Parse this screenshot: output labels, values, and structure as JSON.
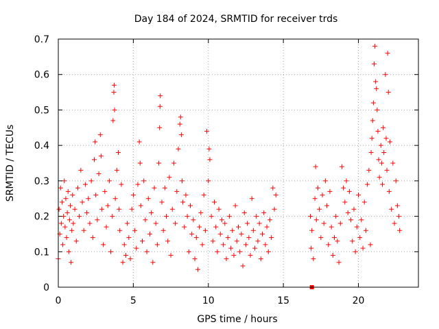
{
  "chart_data": {
    "type": "scatter",
    "title": "Day 184 of 2024, SRMTID for receiver trds",
    "xlabel": "GPS time / hours",
    "ylabel": "SRMTID / TECUs",
    "xlim": [
      0,
      24
    ],
    "ylim": [
      0,
      0.7
    ],
    "xticks": [
      0,
      5,
      10,
      15,
      20
    ],
    "xtick_labels": [
      "0",
      "5",
      "10",
      "15",
      "20"
    ],
    "yticks": [
      0,
      0.1,
      0.2,
      0.3,
      0.4,
      0.5,
      0.6,
      0.7
    ],
    "ytick_labels": [
      "0",
      "0.1",
      "0.2",
      "0.3",
      "0.4",
      "0.5",
      "0.6",
      "0.7"
    ],
    "grid": true,
    "marker": "+",
    "color": "#ff0000",
    "square_marker": {
      "x": 16.9,
      "y": 0.0
    },
    "series": [
      {
        "name": "SRMTID",
        "points": [
          [
            0.0,
            0.08
          ],
          [
            0.05,
            0.22
          ],
          [
            0.1,
            0.15
          ],
          [
            0.15,
            0.28
          ],
          [
            0.2,
            0.18
          ],
          [
            0.25,
            0.24
          ],
          [
            0.3,
            0.12
          ],
          [
            0.35,
            0.2
          ],
          [
            0.4,
            0.3
          ],
          [
            0.45,
            0.17
          ],
          [
            0.5,
            0.25
          ],
          [
            0.55,
            0.14
          ],
          [
            0.6,
            0.21
          ],
          [
            0.65,
            0.27
          ],
          [
            0.7,
            0.1
          ],
          [
            0.75,
            0.19
          ],
          [
            0.8,
            0.23
          ],
          [
            0.85,
            0.07
          ],
          [
            0.9,
            0.16
          ],
          [
            0.95,
            0.26
          ],
          [
            1.0,
            0.18
          ],
          [
            1.1,
            0.22
          ],
          [
            1.2,
            0.13
          ],
          [
            1.3,
            0.28
          ],
          [
            1.4,
            0.2
          ],
          [
            1.5,
            0.33
          ],
          [
            1.6,
            0.24
          ],
          [
            1.7,
            0.16
          ],
          [
            1.8,
            0.29
          ],
          [
            1.9,
            0.21
          ],
          [
            2.0,
            0.25
          ],
          [
            2.1,
            0.18
          ],
          [
            2.2,
            0.3
          ],
          [
            2.3,
            0.14
          ],
          [
            2.4,
            0.36
          ],
          [
            2.45,
            0.41
          ],
          [
            2.5,
            0.26
          ],
          [
            2.6,
            0.19
          ],
          [
            2.7,
            0.32
          ],
          [
            2.8,
            0.43
          ],
          [
            2.85,
            0.37
          ],
          [
            2.9,
            0.22
          ],
          [
            3.0,
            0.12
          ],
          [
            3.1,
            0.27
          ],
          [
            3.2,
            0.17
          ],
          [
            3.3,
            0.23
          ],
          [
            3.4,
            0.3
          ],
          [
            3.5,
            0.1
          ],
          [
            3.6,
            0.2
          ],
          [
            3.65,
            0.47
          ],
          [
            3.7,
            0.55
          ],
          [
            3.72,
            0.57
          ],
          [
            3.75,
            0.5
          ],
          [
            3.8,
            0.25
          ],
          [
            3.9,
            0.33
          ],
          [
            4.0,
            0.38
          ],
          [
            4.05,
            0.22
          ],
          [
            4.1,
            0.16
          ],
          [
            4.2,
            0.29
          ],
          [
            4.3,
            0.07
          ],
          [
            4.4,
            0.12
          ],
          [
            4.5,
            0.09
          ],
          [
            4.6,
            0.18
          ],
          [
            4.7,
            0.14
          ],
          [
            4.8,
            0.08
          ],
          [
            4.9,
            0.22
          ],
          [
            5.0,
            0.26
          ],
          [
            5.1,
            0.16
          ],
          [
            5.2,
            0.11
          ],
          [
            5.3,
            0.29
          ],
          [
            5.4,
            0.41
          ],
          [
            5.45,
            0.35
          ],
          [
            5.5,
            0.23
          ],
          [
            5.6,
            0.13
          ],
          [
            5.7,
            0.3
          ],
          [
            5.8,
            0.19
          ],
          [
            5.9,
            0.1
          ],
          [
            6.0,
            0.25
          ],
          [
            6.1,
            0.15
          ],
          [
            6.2,
            0.21
          ],
          [
            6.3,
            0.07
          ],
          [
            6.4,
            0.28
          ],
          [
            6.5,
            0.18
          ],
          [
            6.6,
            0.12
          ],
          [
            6.7,
            0.35
          ],
          [
            6.75,
            0.45
          ],
          [
            6.78,
            0.51
          ],
          [
            6.8,
            0.54
          ],
          [
            6.9,
            0.24
          ],
          [
            7.0,
            0.16
          ],
          [
            7.1,
            0.28
          ],
          [
            7.2,
            0.2
          ],
          [
            7.3,
            0.13
          ],
          [
            7.4,
            0.31
          ],
          [
            7.5,
            0.09
          ],
          [
            7.6,
            0.22
          ],
          [
            7.7,
            0.35
          ],
          [
            7.8,
            0.18
          ],
          [
            7.9,
            0.27
          ],
          [
            8.0,
            0.39
          ],
          [
            8.1,
            0.46
          ],
          [
            8.15,
            0.48
          ],
          [
            8.2,
            0.43
          ],
          [
            8.25,
            0.3
          ],
          [
            8.3,
            0.24
          ],
          [
            8.4,
            0.17
          ],
          [
            8.5,
            0.26
          ],
          [
            8.6,
            0.2
          ],
          [
            8.7,
            0.1
          ],
          [
            8.8,
            0.23
          ],
          [
            8.9,
            0.15
          ],
          [
            9.0,
            0.19
          ],
          [
            9.1,
            0.08
          ],
          [
            9.2,
            0.14
          ],
          [
            9.3,
            0.05
          ],
          [
            9.4,
            0.17
          ],
          [
            9.5,
            0.21
          ],
          [
            9.6,
            0.12
          ],
          [
            9.7,
            0.26
          ],
          [
            9.8,
            0.16
          ],
          [
            9.9,
            0.44
          ],
          [
            10.0,
            0.3
          ],
          [
            10.05,
            0.39
          ],
          [
            10.1,
            0.36
          ],
          [
            10.2,
            0.2
          ],
          [
            10.3,
            0.13
          ],
          [
            10.4,
            0.24
          ],
          [
            10.5,
            0.17
          ],
          [
            10.6,
            0.1
          ],
          [
            10.7,
            0.22
          ],
          [
            10.8,
            0.15
          ],
          [
            10.9,
            0.19
          ],
          [
            11.0,
            0.12
          ],
          [
            11.1,
            0.18
          ],
          [
            11.2,
            0.08
          ],
          [
            11.3,
            0.14
          ],
          [
            11.4,
            0.2
          ],
          [
            11.5,
            0.11
          ],
          [
            11.6,
            0.16
          ],
          [
            11.7,
            0.09
          ],
          [
            11.8,
            0.23
          ],
          [
            11.9,
            0.13
          ],
          [
            12.0,
            0.17
          ],
          [
            12.1,
            0.1
          ],
          [
            12.2,
            0.15
          ],
          [
            12.3,
            0.06
          ],
          [
            12.4,
            0.21
          ],
          [
            12.5,
            0.12
          ],
          [
            12.6,
            0.18
          ],
          [
            12.7,
            0.14
          ],
          [
            12.8,
            0.09
          ],
          [
            12.9,
            0.25
          ],
          [
            13.0,
            0.16
          ],
          [
            13.1,
            0.11
          ],
          [
            13.2,
            0.2
          ],
          [
            13.3,
            0.13
          ],
          [
            13.4,
            0.18
          ],
          [
            13.5,
            0.08
          ],
          [
            13.6,
            0.15
          ],
          [
            13.7,
            0.21
          ],
          [
            13.8,
            0.12
          ],
          [
            13.9,
            0.17
          ],
          [
            14.0,
            0.1
          ],
          [
            14.1,
            0.19
          ],
          [
            14.2,
            0.14
          ],
          [
            14.3,
            0.28
          ],
          [
            14.4,
            0.22
          ],
          [
            14.5,
            0.26
          ],
          [
            16.8,
            0.2
          ],
          [
            16.85,
            0.11
          ],
          [
            16.9,
            0.16
          ],
          [
            17.0,
            0.08
          ],
          [
            17.1,
            0.25
          ],
          [
            17.15,
            0.34
          ],
          [
            17.2,
            0.19
          ],
          [
            17.3,
            0.28
          ],
          [
            17.4,
            0.22
          ],
          [
            17.5,
            0.14
          ],
          [
            17.6,
            0.26
          ],
          [
            17.7,
            0.18
          ],
          [
            17.8,
            0.3
          ],
          [
            17.9,
            0.23
          ],
          [
            18.0,
            0.12
          ],
          [
            18.1,
            0.27
          ],
          [
            18.2,
            0.17
          ],
          [
            18.3,
            0.09
          ],
          [
            18.4,
            0.14
          ],
          [
            18.5,
            0.2
          ],
          [
            18.6,
            0.13
          ],
          [
            18.7,
            0.07
          ],
          [
            18.8,
            0.18
          ],
          [
            18.9,
            0.34
          ],
          [
            19.0,
            0.28
          ],
          [
            19.1,
            0.24
          ],
          [
            19.2,
            0.3
          ],
          [
            19.3,
            0.21
          ],
          [
            19.4,
            0.27
          ],
          [
            19.5,
            0.19
          ],
          [
            19.6,
            0.13
          ],
          [
            19.7,
            0.22
          ],
          [
            19.8,
            0.1
          ],
          [
            19.9,
            0.17
          ],
          [
            20.0,
            0.26
          ],
          [
            20.1,
            0.14
          ],
          [
            20.2,
            0.19
          ],
          [
            20.3,
            0.11
          ],
          [
            20.4,
            0.24
          ],
          [
            20.5,
            0.16
          ],
          [
            20.6,
            0.29
          ],
          [
            20.7,
            0.33
          ],
          [
            20.8,
            0.12
          ],
          [
            20.85,
            0.38
          ],
          [
            20.9,
            0.42
          ],
          [
            20.95,
            0.47
          ],
          [
            21.0,
            0.52
          ],
          [
            21.05,
            0.63
          ],
          [
            21.1,
            0.68
          ],
          [
            21.15,
            0.58
          ],
          [
            21.2,
            0.56
          ],
          [
            21.25,
            0.5
          ],
          [
            21.3,
            0.44
          ],
          [
            21.35,
            0.36
          ],
          [
            21.4,
            0.31
          ],
          [
            21.5,
            0.4
          ],
          [
            21.55,
            0.35
          ],
          [
            21.6,
            0.29
          ],
          [
            21.65,
            0.45
          ],
          [
            21.7,
            0.38
          ],
          [
            21.8,
            0.6
          ],
          [
            21.85,
            0.42
          ],
          [
            21.9,
            0.33
          ],
          [
            21.95,
            0.66
          ],
          [
            22.0,
            0.55
          ],
          [
            22.05,
            0.27
          ],
          [
            22.1,
            0.41
          ],
          [
            22.2,
            0.22
          ],
          [
            22.3,
            0.35
          ],
          [
            22.4,
            0.18
          ],
          [
            22.5,
            0.3
          ],
          [
            22.6,
            0.23
          ],
          [
            22.7,
            0.2
          ],
          [
            22.75,
            0.16
          ]
        ]
      }
    ]
  }
}
